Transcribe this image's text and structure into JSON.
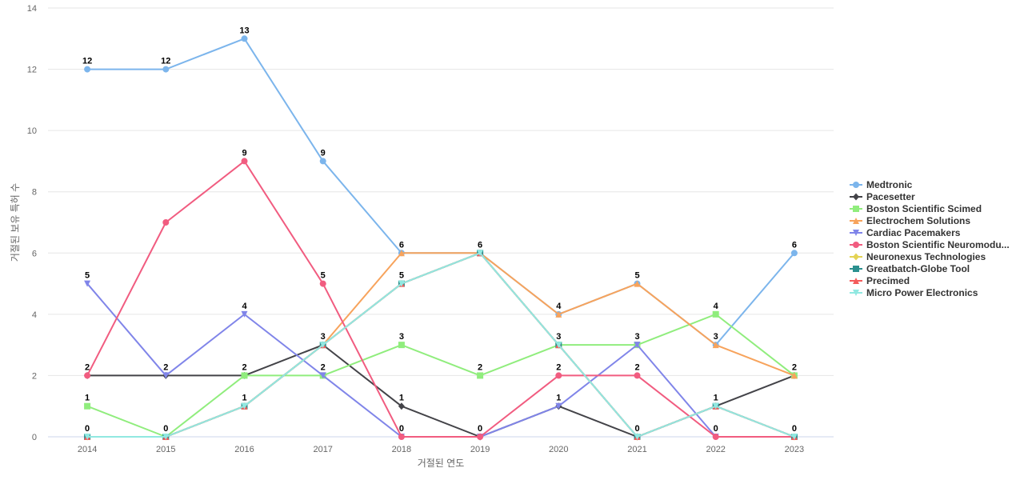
{
  "chart_data": {
    "type": "line",
    "title": "",
    "xlabel": "거절된 연도",
    "ylabel": "거절된 보유 특허 수",
    "x": [
      "2014",
      "2015",
      "2016",
      "2017",
      "2018",
      "2019",
      "2020",
      "2021",
      "2022",
      "2023"
    ],
    "ylim": [
      0,
      14
    ],
    "yticks": [
      0,
      2,
      4,
      6,
      8,
      10,
      12,
      14
    ],
    "grid": true,
    "legend_position": "right",
    "series": [
      {
        "name": "Medtronic",
        "color": "#7cb5ec",
        "marker": "circle",
        "values": [
          12,
          12,
          13,
          9,
          6,
          6,
          4,
          5,
          3,
          6
        ]
      },
      {
        "name": "Pacesetter",
        "color": "#434348",
        "marker": "diamond",
        "values": [
          2,
          2,
          2,
          3,
          1,
          0,
          1,
          0,
          1,
          2
        ]
      },
      {
        "name": "Boston Scientific Scimed",
        "color": "#90ed7d",
        "marker": "square",
        "values": [
          1,
          0,
          2,
          2,
          3,
          2,
          3,
          3,
          4,
          2
        ]
      },
      {
        "name": "Electrochem Solutions",
        "color": "#f7a35c",
        "marker": "triangle",
        "values": [
          0,
          0,
          1,
          3,
          6,
          6,
          4,
          5,
          3,
          2
        ]
      },
      {
        "name": "Cardiac Pacemakers",
        "color": "#8085e9",
        "marker": "triangle-down",
        "values": [
          5,
          2,
          4,
          2,
          0,
          0,
          1,
          3,
          0,
          0
        ]
      },
      {
        "name": "Boston Scientific Neuromodu...",
        "color": "#f15c80",
        "marker": "circle",
        "values": [
          2,
          7,
          9,
          5,
          0,
          0,
          2,
          2,
          0,
          0
        ]
      },
      {
        "name": "Neuronexus Technologies",
        "color": "#e4d354",
        "marker": "diamond",
        "values": [
          0,
          0,
          1,
          3,
          5,
          6,
          3,
          0,
          1,
          0
        ]
      },
      {
        "name": "Greatbatch-Globe Tool",
        "color": "#2b908f",
        "marker": "square",
        "values": [
          0,
          0,
          1,
          3,
          5,
          6,
          3,
          0,
          1,
          0
        ]
      },
      {
        "name": "Precimed",
        "color": "#f45b5b",
        "marker": "triangle",
        "values": [
          0,
          0,
          1,
          3,
          5,
          6,
          3,
          0,
          1,
          0
        ]
      },
      {
        "name": "Micro Power Electronics",
        "color": "#91e8e1",
        "marker": "triangle-down",
        "values": [
          0,
          0,
          1,
          3,
          5,
          6,
          3,
          0,
          1,
          0
        ]
      }
    ],
    "data_labels": [
      {
        "x": "2014",
        "value": 12
      },
      {
        "x": "2014",
        "value": 5
      },
      {
        "x": "2014",
        "value": 2
      },
      {
        "x": "2014",
        "value": 1
      },
      {
        "x": "2014",
        "value": 0
      },
      {
        "x": "2015",
        "value": 12
      },
      {
        "x": "2015",
        "value": 2
      },
      {
        "x": "2015",
        "value": 0
      },
      {
        "x": "2016",
        "value": 13
      },
      {
        "x": "2016",
        "value": 9
      },
      {
        "x": "2016",
        "value": 4
      },
      {
        "x": "2016",
        "value": 2
      },
      {
        "x": "2016",
        "value": 1
      },
      {
        "x": "2017",
        "value": 9
      },
      {
        "x": "2017",
        "value": 5
      },
      {
        "x": "2017",
        "value": 3
      },
      {
        "x": "2017",
        "value": 2
      },
      {
        "x": "2018",
        "value": 6
      },
      {
        "x": "2018",
        "value": 5
      },
      {
        "x": "2018",
        "value": 3
      },
      {
        "x": "2018",
        "value": 1
      },
      {
        "x": "2018",
        "value": 0
      },
      {
        "x": "2019",
        "value": 6
      },
      {
        "x": "2019",
        "value": 2
      },
      {
        "x": "2019",
        "value": 0
      },
      {
        "x": "2020",
        "value": 4
      },
      {
        "x": "2020",
        "value": 3
      },
      {
        "x": "2020",
        "value": 2
      },
      {
        "x": "2020",
        "value": 1
      },
      {
        "x": "2021",
        "value": 5
      },
      {
        "x": "2021",
        "value": 3
      },
      {
        "x": "2021",
        "value": 2
      },
      {
        "x": "2021",
        "value": 0
      },
      {
        "x": "2022",
        "value": 4
      },
      {
        "x": "2022",
        "value": 3
      },
      {
        "x": "2022",
        "value": 1
      },
      {
        "x": "2022",
        "value": 0
      },
      {
        "x": "2023",
        "value": 6
      },
      {
        "x": "2023",
        "value": 2
      },
      {
        "x": "2023",
        "value": 0
      }
    ]
  }
}
